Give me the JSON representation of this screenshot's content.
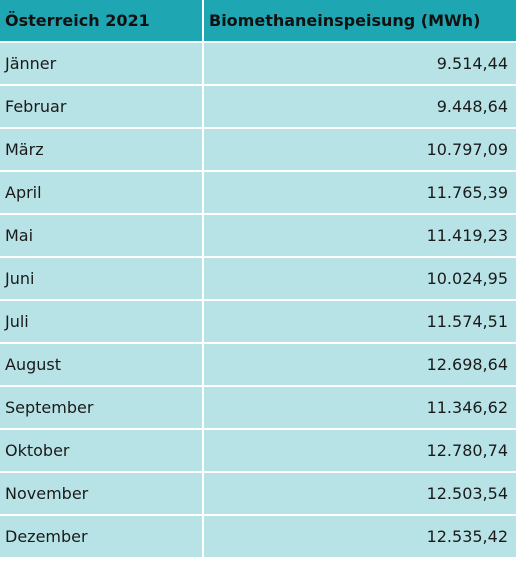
{
  "table": {
    "headers": [
      "Österreich 2021",
      "Biomethaneinspeisung (MWh)"
    ],
    "rows": [
      {
        "month": "Jänner",
        "value": "9.514,44"
      },
      {
        "month": "Februar",
        "value": "9.448,64"
      },
      {
        "month": "März",
        "value": "10.797,09"
      },
      {
        "month": "April",
        "value": "11.765,39"
      },
      {
        "month": "Mai",
        "value": "11.419,23"
      },
      {
        "month": "Juni",
        "value": "10.024,95"
      },
      {
        "month": "Juli",
        "value": "11.574,51"
      },
      {
        "month": "August",
        "value": "12.698,64"
      },
      {
        "month": "September",
        "value": "11.346,62"
      },
      {
        "month": "Oktober",
        "value": "12.780,74"
      },
      {
        "month": "November",
        "value": "12.503,54"
      },
      {
        "month": "Dezember",
        "value": "12.535,42"
      }
    ]
  },
  "colors": {
    "header_bg": "#1ea7b3",
    "row_bg": "#b8e3e6",
    "grid": "#ffffff"
  }
}
